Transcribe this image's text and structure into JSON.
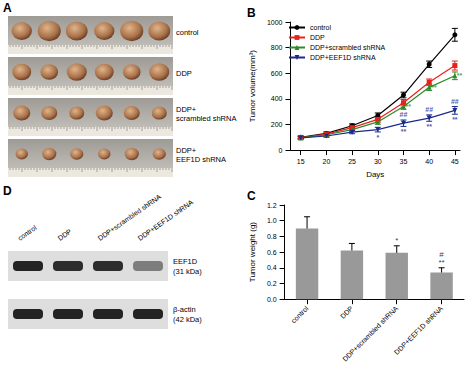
{
  "chart_data": [
    {
      "panel": "B",
      "type": "line",
      "x_label": "Days",
      "y_label": "Tumor volume(mm³)",
      "x": [
        15,
        20,
        25,
        30,
        35,
        40,
        45
      ],
      "xlim": [
        13,
        46
      ],
      "xticks": [
        15,
        20,
        25,
        30,
        35,
        40,
        45
      ],
      "ylim": [
        0,
        1000
      ],
      "yticks": [
        0,
        200,
        400,
        600,
        800,
        1000
      ],
      "grid": false,
      "legend": "upper left",
      "series": [
        {
          "name": "control",
          "color": "#000000",
          "marker": "circle",
          "values": [
            100,
            130,
            190,
            270,
            430,
            670,
            900
          ],
          "errors": [
            10,
            12,
            15,
            20,
            22,
            25,
            50
          ]
        },
        {
          "name": "DDP",
          "color": "#e8221a",
          "marker": "square",
          "values": [
            98,
            125,
            175,
            240,
            370,
            530,
            660
          ],
          "errors": [
            10,
            15,
            18,
            22,
            25,
            25,
            35
          ]
        },
        {
          "name": "DDP+scrambled shRNA",
          "color": "#2a8c2a",
          "marker": "triangle",
          "values": [
            95,
            120,
            160,
            220,
            340,
            490,
            580
          ],
          "errors": [
            10,
            12,
            15,
            18,
            22,
            25,
            30
          ],
          "annotations_right": [
            null,
            null,
            null,
            null,
            "**",
            "**",
            "**"
          ]
        },
        {
          "name": "DDP+EEF1D shRNA",
          "color": "#1c2a8c",
          "marker": "triangle-down",
          "values": [
            95,
            110,
            140,
            160,
            210,
            250,
            310
          ],
          "errors": [
            8,
            10,
            12,
            18,
            25,
            25,
            30
          ],
          "annotations_above": [
            null,
            null,
            null,
            null,
            "##",
            "##",
            "##"
          ],
          "annotations_below": [
            null,
            null,
            null,
            "*",
            "**",
            "**",
            "**"
          ]
        }
      ]
    },
    {
      "panel": "C",
      "type": "bar",
      "y_label": "Tumor weight (g)",
      "categories": [
        "control",
        "DDP",
        "DDP+scrambled shRNA",
        "DDP+EEF1D shRNA"
      ],
      "values": [
        0.9,
        0.62,
        0.59,
        0.34
      ],
      "errors": [
        0.15,
        0.09,
        0.09,
        0.06
      ],
      "annotations": [
        null,
        null,
        [
          "*"
        ],
        [
          "#",
          "**"
        ]
      ],
      "color": "#999999",
      "ylim": [
        0,
        1.2
      ],
      "yticks": [
        {
          "value": 0,
          "label": "0.0"
        },
        0.2,
        0.4,
        0.6,
        0.8,
        {
          "value": 1,
          "label": "1.0"
        },
        1.2
      ],
      "grid": false
    }
  ],
  "panels": [
    {
      "panel": "A",
      "rows": [
        {
          "label": [
            "control"
          ],
          "tumors": 6
        },
        {
          "label": [
            "DDP"
          ],
          "tumors": 6
        },
        {
          "label": [
            "DDP+",
            "scrambled shRNA"
          ],
          "tumors": 6
        },
        {
          "label": [
            "DDP+",
            "EEF1D shRNA"
          ],
          "tumors": 6
        }
      ]
    },
    {
      "panel": "D",
      "lanes": [
        "control",
        "DDP",
        "DDP+scrambled shRNA",
        "DDP+EEF1D shRNA"
      ],
      "blots": [
        {
          "name": "EEF1D",
          "size": "(31 kDa)",
          "relative_intensity": [
            1,
            0.95,
            0.95,
            0.55
          ]
        },
        {
          "name": "β-actin",
          "size": "(42 kDa)",
          "relative_intensity": [
            1,
            1,
            1,
            1
          ]
        }
      ]
    }
  ]
}
